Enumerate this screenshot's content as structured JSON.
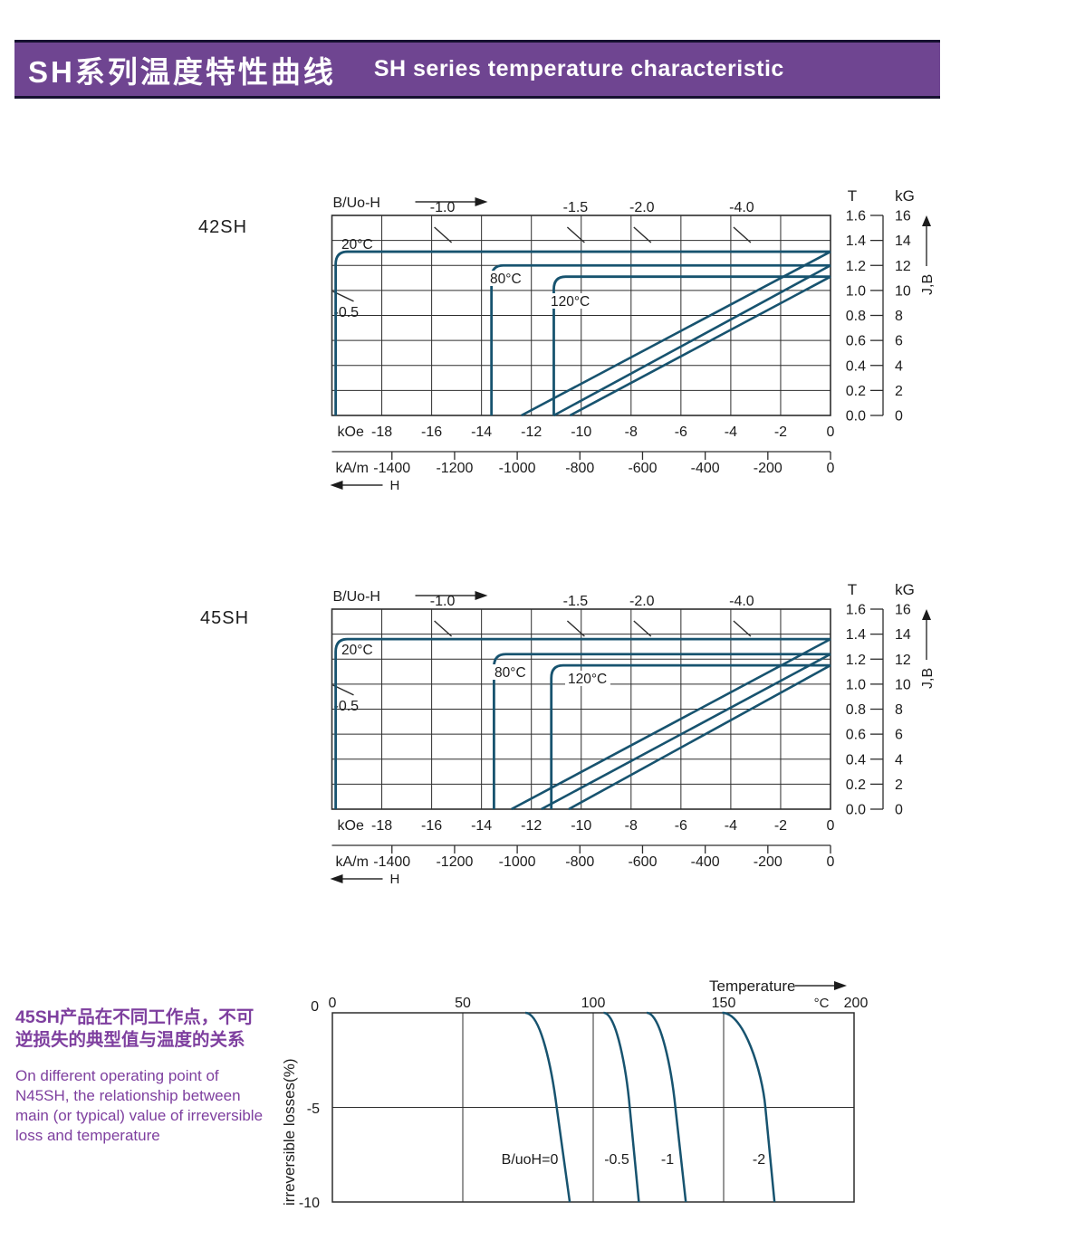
{
  "header": {
    "title_zh": "SH系列温度特性曲线",
    "title_en": "SH  series temperature characteristic"
  },
  "colors": {
    "banner_bg": "#6f4591",
    "banner_border": "#161130",
    "curve_blue": "#17536f",
    "grid": "#2d2d2d",
    "purple_text": "#7e3f9f",
    "chart_text": "#1c1c1c"
  },
  "chart_data": [
    {
      "type": "line",
      "id": "demag-42sh",
      "label": "42SH",
      "top_axis_label": "B/Uo-H",
      "x_unit_primary": "kOe",
      "x_unit_secondary": "kA/m",
      "x_arrow_label": "H",
      "y_unit_left": "T",
      "y_unit_right": "kG",
      "y_axis_label": "J,B",
      "x_range_kOe": [
        -20,
        0
      ],
      "y_range_T": [
        0,
        1.6
      ],
      "x_ticks_kOe": [
        -18,
        -16,
        -14,
        -12,
        -10,
        -8,
        -6,
        -4,
        -2,
        0
      ],
      "x_ticks_kAm": [
        -1400,
        -1200,
        -1000,
        -800,
        -600,
        -400,
        -200,
        0
      ],
      "y_ticks_T": [
        "1.6",
        "1.4",
        "1.2",
        "1.0",
        "0.8",
        "0.6",
        "0.4",
        "0.2",
        "0.0"
      ],
      "y_ticks_kG": [
        "16",
        "14",
        "12",
        "10",
        "8",
        "6",
        "4",
        "2",
        "0"
      ],
      "load_lines": [
        {
          "label": "-1.0",
          "ratio": 1.0
        },
        {
          "label": "-1.5",
          "ratio": 1.5
        },
        {
          "label": "-2.0",
          "ratio": 2.0
        },
        {
          "label": "-4.0",
          "ratio": 4.0
        }
      ],
      "left_load_line": {
        "label": "-0.5",
        "ratio": 0.5
      },
      "series": [
        {
          "name": "20°C",
          "br_T": 1.31,
          "hcj_kOe": 19.85,
          "hcb_kOe": 12.4
        },
        {
          "name": "80°C",
          "br_T": 1.2,
          "hcj_kOe": 13.6,
          "hcb_kOe": 11.1
        },
        {
          "name": "120°C",
          "br_T": 1.11,
          "hcj_kOe": 11.1,
          "hcb_kOe": 10.45
        }
      ]
    },
    {
      "type": "line",
      "id": "demag-45sh",
      "label": "45SH",
      "top_axis_label": "B/Uo-H",
      "x_unit_primary": "kOe",
      "x_unit_secondary": "kA/m",
      "x_arrow_label": "H",
      "y_unit_left": "T",
      "y_unit_right": "kG",
      "y_axis_label": "J,B",
      "x_range_kOe": [
        -20,
        0
      ],
      "y_range_T": [
        0,
        1.6
      ],
      "x_ticks_kOe": [
        -18,
        -16,
        -14,
        -12,
        -10,
        -8,
        -6,
        -4,
        -2,
        0
      ],
      "x_ticks_kAm": [
        -1400,
        -1200,
        -1000,
        -800,
        -600,
        -400,
        -200,
        0
      ],
      "y_ticks_T": [
        "1.6",
        "1.4",
        "1.2",
        "1.0",
        "0.8",
        "0.6",
        "0.4",
        "0.2",
        "0.0"
      ],
      "y_ticks_kG": [
        "16",
        "14",
        "12",
        "10",
        "8",
        "6",
        "4",
        "2",
        "0"
      ],
      "load_lines": [
        {
          "label": "-1.0",
          "ratio": 1.0
        },
        {
          "label": "-1.5",
          "ratio": 1.5
        },
        {
          "label": "-2.0",
          "ratio": 2.0
        },
        {
          "label": "-4.0",
          "ratio": 4.0
        }
      ],
      "left_load_line": {
        "label": "-0.5",
        "ratio": 0.5
      },
      "series": [
        {
          "name": "20°C",
          "br_T": 1.36,
          "hcj_kOe": 19.85,
          "hcb_kOe": 12.8
        },
        {
          "name": "80°C",
          "br_T": 1.24,
          "hcj_kOe": 13.5,
          "hcb_kOe": 11.6
        },
        {
          "name": "120°C",
          "br_T": 1.15,
          "hcj_kOe": 11.2,
          "hcb_kOe": 10.5
        }
      ]
    },
    {
      "type": "line",
      "id": "irreversible-loss",
      "notes_zh": [
        "45SH产品在不同工作点，不可",
        "逆损失的典型值与温度的关系"
      ],
      "notes_en": [
        "On different operating point of",
        "N45SH,  the relationship between",
        "main (or typical) value of irreversible",
        "loss and temperature"
      ],
      "x_axis_label": "Temperature",
      "x_unit": "°C",
      "y_axis_label": "irreversible  losses(%)",
      "x_range_C": [
        0,
        200
      ],
      "y_range_pct": [
        -10,
        0
      ],
      "x_ticks": [
        0,
        50,
        100,
        150,
        200
      ],
      "y_ticks": [
        0,
        -5,
        -10
      ],
      "series": [
        {
          "name": "B/uoH=0",
          "depart_C": 74,
          "at_minus5_C": 86,
          "at_minus10_C": 91
        },
        {
          "name": "-0.5",
          "depart_C": 104,
          "at_minus5_C": 114,
          "at_minus10_C": 117.5
        },
        {
          "name": "-1",
          "depart_C": 120.5,
          "at_minus5_C": 131.5,
          "at_minus10_C": 135.5
        },
        {
          "name": "-2",
          "depart_C": 149.5,
          "at_minus5_C": 166,
          "at_minus10_C": 169.5
        }
      ]
    }
  ]
}
